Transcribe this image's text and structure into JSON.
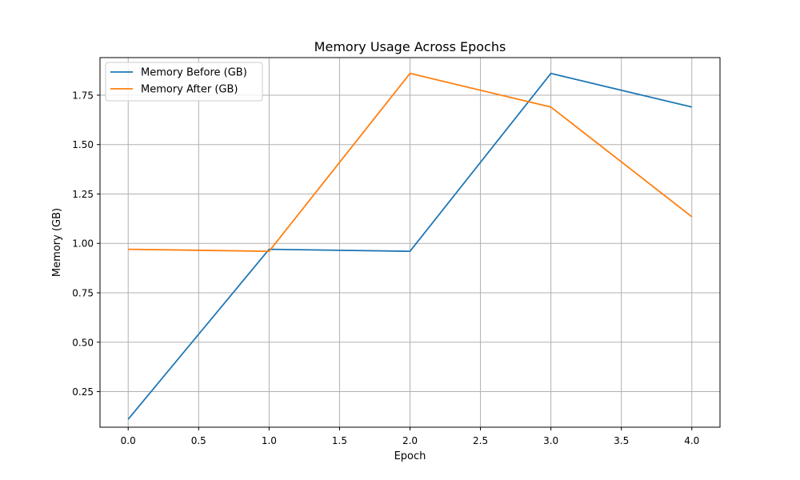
{
  "chart_data": {
    "type": "line",
    "title": "Memory Usage Across Epochs",
    "xlabel": "Epoch",
    "ylabel": "Memory (GB)",
    "x": [
      0,
      1,
      2,
      3,
      4
    ],
    "xlim": [
      -0.2,
      4.2
    ],
    "ylim": [
      0.07,
      1.94
    ],
    "xticks": [
      0,
      0.5,
      1,
      1.5,
      2,
      2.5,
      3,
      3.5,
      4
    ],
    "xtick_labels": [
      "0.0",
      "0.5",
      "1.0",
      "1.5",
      "2.0",
      "2.5",
      "3.0",
      "3.5",
      "4.0"
    ],
    "yticks": [
      0.25,
      0.5,
      0.75,
      1.0,
      1.25,
      1.5,
      1.75
    ],
    "ytick_labels": [
      "0.25",
      "0.50",
      "0.75",
      "1.00",
      "1.25",
      "1.50",
      "1.75"
    ],
    "grid": true,
    "legend_position": "top-left",
    "series": [
      {
        "name": "Memory Before (GB)",
        "color": "#1f77b4",
        "values": [
          0.11,
          0.97,
          0.96,
          1.86,
          1.69
        ]
      },
      {
        "name": "Memory After (GB)",
        "color": "#ff7f0e",
        "values": [
          0.97,
          0.96,
          1.86,
          1.69,
          1.135
        ]
      }
    ]
  }
}
